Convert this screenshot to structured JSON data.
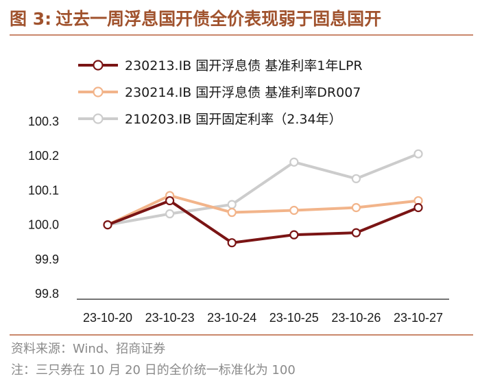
{
  "figure": {
    "number": "图 3:",
    "title": "过去一周浮息国开债全价表现弱于固息国开",
    "source": "资料来源：Wind、招商证券",
    "note": "注：三只券在 10 月 20 日的全价统一标准化为 100"
  },
  "chart_data": {
    "type": "line",
    "categories": [
      "23-10-20",
      "23-10-23",
      "23-10-24",
      "23-10-25",
      "23-10-26",
      "23-10-27"
    ],
    "series": [
      {
        "name": "230213.IB 国开浮息债 基准利率1年LPR",
        "color": "#7a1414",
        "values": [
          100.0,
          100.07,
          99.948,
          99.971,
          99.977,
          100.05
        ]
      },
      {
        "name": "230214.IB 国开浮息债 基准利率DR007",
        "color": "#f2b48a",
        "values": [
          100.0,
          100.085,
          100.036,
          100.042,
          100.05,
          100.07
        ]
      },
      {
        "name": "210203.IB 国开固定利率（2.34年）",
        "color": "#cccccc",
        "values": [
          100.0,
          100.032,
          100.059,
          100.182,
          100.134,
          100.206
        ]
      }
    ],
    "y_ticks": [
      "99.8",
      "99.9",
      "100.0",
      "100.1",
      "100.2",
      "100.3"
    ],
    "ylim": [
      99.8,
      100.3
    ],
    "grid": false,
    "legend_position": "top-left"
  }
}
